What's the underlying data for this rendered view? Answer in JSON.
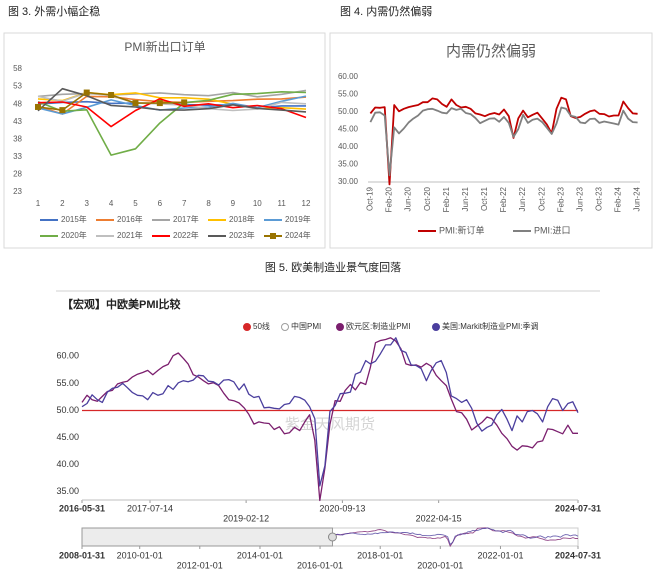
{
  "chart_data": [
    {
      "type": "line",
      "caption": "图 3.  外需小幅企稳",
      "title": "PMI新出口订单",
      "categories": [
        "1",
        "2",
        "3",
        "4",
        "5",
        "6",
        "7",
        "8",
        "9",
        "10",
        "11",
        "12"
      ],
      "ylim": [
        23,
        58
      ],
      "yticks": [
        23,
        28,
        33,
        38,
        43,
        48,
        53,
        58
      ],
      "grid": false,
      "series": [
        {
          "name": "2015年",
          "color": "#4472c4",
          "values": [
            48.0,
            48.5,
            48.7,
            48.2,
            48.3,
            48.2,
            47.9,
            47.7,
            47.9,
            46.9,
            47.5,
            47.5
          ]
        },
        {
          "name": "2016年",
          "color": "#ed7d31",
          "values": [
            47.4,
            45.2,
            50.2,
            50.1,
            49.3,
            48.7,
            48.5,
            48.8,
            49.0,
            49.4,
            49.5,
            50.0
          ]
        },
        {
          "name": "2017年",
          "color": "#a5a5a5",
          "values": [
            50.2,
            50.8,
            51.0,
            50.6,
            50.9,
            51.2,
            50.7,
            50.4,
            51.3,
            50.1,
            50.8,
            51.9
          ]
        },
        {
          "name": "2018年",
          "color": "#ffc000",
          "values": [
            49.5,
            49.0,
            51.3,
            50.7,
            51.2,
            49.8,
            49.8,
            49.4,
            48.0,
            46.9,
            47.0,
            46.6
          ]
        },
        {
          "name": "2019年",
          "color": "#5b9bd5",
          "values": [
            46.9,
            45.2,
            47.1,
            49.2,
            47.6,
            46.3,
            46.9,
            47.2,
            48.2,
            47.0,
            48.8,
            50.3
          ]
        },
        {
          "name": "2020年",
          "color": "#70ad47",
          "values": [
            48.7,
            46.0,
            46.4,
            33.5,
            35.3,
            42.6,
            48.4,
            49.1,
            50.8,
            51.0,
            51.5,
            51.3
          ]
        },
        {
          "name": "2021年",
          "color": "#bfbfbf",
          "values": [
            50.2,
            48.8,
            51.2,
            50.4,
            48.3,
            48.1,
            47.7,
            46.7,
            46.2,
            46.6,
            48.5,
            48.1
          ]
        },
        {
          "name": "2022年",
          "color": "#ff0000",
          "values": [
            48.4,
            48.6,
            47.2,
            41.6,
            46.2,
            49.5,
            47.4,
            48.1,
            47.0,
            47.6,
            46.7,
            44.2
          ]
        },
        {
          "name": "2023年",
          "color": "#595959",
          "values": [
            46.1,
            52.4,
            50.4,
            47.6,
            47.2,
            46.4,
            46.3,
            46.7,
            47.8,
            46.8,
            46.3,
            45.8
          ]
        },
        {
          "name": "2024年",
          "color": "#997300",
          "marker": "square",
          "values": [
            47.2,
            46.3,
            51.3,
            50.6,
            48.3,
            48.3,
            48.5,
            null,
            null,
            null,
            null,
            null
          ]
        }
      ]
    },
    {
      "type": "line",
      "caption": "图 4.  内需仍然偏弱",
      "title": "内需仍然偏弱",
      "categories": [
        "Oct-19",
        null,
        null,
        null,
        "Feb-20",
        null,
        null,
        null,
        "Jun-20",
        null,
        null,
        null,
        "Oct-20",
        null,
        null,
        null,
        "Feb-21",
        null,
        null,
        null,
        "Jun-21",
        null,
        null,
        null,
        "Oct-21",
        null,
        null,
        null,
        "Feb-22",
        null,
        null,
        null,
        "Jun-22",
        null,
        null,
        null,
        "Oct-22",
        null,
        null,
        null,
        "Feb-23",
        null,
        null,
        null,
        "Jun-23",
        null,
        null,
        null,
        "Oct-23",
        null,
        null,
        null,
        "Feb-24",
        null,
        null,
        null,
        "Jun-24"
      ],
      "ylim": [
        30,
        60
      ],
      "yticks": [
        {
          "value": 30,
          "label": "30.00"
        },
        {
          "value": 35,
          "label": "35.00"
        },
        {
          "value": 40,
          "label": "40.00"
        },
        {
          "value": 45,
          "label": "45.00"
        },
        {
          "value": 50,
          "label": "50.00"
        },
        {
          "value": 55,
          "label": "55.00"
        },
        {
          "value": 60,
          "label": "60.00"
        }
      ],
      "grid": false,
      "series": [
        {
          "name": "PMI:新订单",
          "color": "#c00000",
          "values": [
            49.6,
            51.3,
            51.2,
            51.4,
            29.3,
            52.0,
            50.2,
            50.9,
            51.4,
            51.7,
            52.0,
            52.8,
            52.8,
            53.9,
            53.6,
            52.3,
            51.5,
            53.6,
            52.0,
            51.3,
            51.5,
            50.9,
            49.6,
            49.3,
            48.8,
            49.4,
            49.7,
            49.3,
            50.7,
            48.8,
            42.6,
            48.2,
            50.4,
            48.5,
            49.2,
            49.8,
            48.1,
            46.4,
            43.9,
            50.9,
            54.1,
            53.6,
            48.8,
            48.3,
            48.6,
            49.5,
            50.2,
            50.5,
            49.5,
            49.4,
            48.7,
            49.0,
            49.0,
            53.0,
            51.1,
            49.6,
            49.5
          ]
        },
        {
          "name": "PMI:进口",
          "color": "#808080",
          "values": [
            47.1,
            49.8,
            49.9,
            49.0,
            31.9,
            45.6,
            43.9,
            45.3,
            47.0,
            48.1,
            49.0,
            50.4,
            50.8,
            50.9,
            50.4,
            49.8,
            49.6,
            51.1,
            50.6,
            50.9,
            49.7,
            49.4,
            48.3,
            46.8,
            47.5,
            48.1,
            48.2,
            47.2,
            48.6,
            46.9,
            42.9,
            45.1,
            49.2,
            46.9,
            47.8,
            48.1,
            47.1,
            45.5,
            43.7,
            46.7,
            51.3,
            50.9,
            48.9,
            48.6,
            47.0,
            46.8,
            48.0,
            48.1,
            46.9,
            47.3,
            47.0,
            46.7,
            46.4,
            50.4,
            48.1,
            47.1,
            47.0
          ]
        }
      ]
    },
    {
      "type": "line",
      "caption": "图 5.  欧美制造业景气度回落",
      "title": "【宏观】中欧美PMI比较",
      "watermark": "紫金天风期货",
      "x": [
        "2016-05-31",
        "2016-06-30",
        "2016-07-31",
        "2016-08-31",
        "2016-09-30",
        "2016-10-31",
        "2016-11-30",
        "2016-12-31",
        "2017-01-31",
        "2017-02-28",
        "2017-03-31",
        "2017-04-30",
        "2017-05-31",
        "2017-06-30",
        "2017-07-31",
        "2017-08-31",
        "2017-09-30",
        "2017-10-31",
        "2017-11-30",
        "2017-12-31",
        "2018-01-31",
        "2018-02-28",
        "2018-03-31",
        "2018-04-30",
        "2018-05-31",
        "2018-06-30",
        "2018-07-31",
        "2018-08-31",
        "2018-09-30",
        "2018-10-31",
        "2018-11-30",
        "2018-12-31",
        "2019-01-31",
        "2019-02-28",
        "2019-03-31",
        "2019-04-30",
        "2019-05-31",
        "2019-06-30",
        "2019-07-31",
        "2019-08-31",
        "2019-09-30",
        "2019-10-31",
        "2019-11-30",
        "2019-12-31",
        "2020-01-31",
        "2020-02-29",
        "2020-03-31",
        "2020-04-30",
        "2020-05-31",
        "2020-06-30",
        "2020-07-31",
        "2020-08-31",
        "2020-09-30",
        "2020-10-31",
        "2020-11-30",
        "2020-12-31",
        "2021-01-31",
        "2021-02-28",
        "2021-03-31",
        "2021-04-30",
        "2021-05-31",
        "2021-06-30",
        "2021-07-31",
        "2021-08-31",
        "2021-09-30",
        "2021-10-31",
        "2021-11-30",
        "2021-12-31",
        "2022-01-31",
        "2022-02-28",
        "2022-03-31",
        "2022-04-30",
        "2022-05-31",
        "2022-06-30",
        "2022-07-31",
        "2022-08-31",
        "2022-09-30",
        "2022-10-31",
        "2022-11-30",
        "2022-12-31",
        "2023-01-31",
        "2023-02-28",
        "2023-03-31",
        "2023-04-30",
        "2023-05-31",
        "2023-06-30",
        "2023-07-31",
        "2023-08-31",
        "2023-09-30",
        "2023-10-31",
        "2023-11-30",
        "2023-12-31",
        "2024-01-31",
        "2024-02-29",
        "2024-03-31",
        "2024-04-30",
        "2024-05-31",
        "2024-06-30",
        "2024-07-31"
      ],
      "xlim": [
        "2016-05-31",
        "2024-07-31"
      ],
      "xticks": [
        "2016-05-31",
        "2017-07-14",
        "2019-02-12",
        "2020-09-13",
        "2022-04-15",
        "2024-07-31"
      ],
      "ylim": [
        33.5,
        63
      ],
      "yticks": [
        {
          "value": 35,
          "label": "35.00"
        },
        {
          "value": 40,
          "label": "40.00"
        },
        {
          "value": 45,
          "label": "45.00"
        },
        {
          "value": 50,
          "label": "50.00"
        },
        {
          "value": 55,
          "label": "55.00"
        },
        {
          "value": 60,
          "label": "60.00"
        }
      ],
      "grid": false,
      "series": [
        {
          "name": "50线",
          "color": "#d62728",
          "value": 50
        },
        {
          "name": "中国PMI",
          "color": "#9e9e9e",
          "hollow": true
        },
        {
          "name": "欧元区:制造业PMI",
          "color": "#7b1f6e",
          "values": [
            51.5,
            52.8,
            52.0,
            51.7,
            52.6,
            53.5,
            53.7,
            54.9,
            55.2,
            55.4,
            56.2,
            56.7,
            57.0,
            57.4,
            56.6,
            57.4,
            58.1,
            58.5,
            60.1,
            60.6,
            59.6,
            58.6,
            56.6,
            56.2,
            55.5,
            54.9,
            55.1,
            54.6,
            53.2,
            52.0,
            51.8,
            51.4,
            50.5,
            49.3,
            47.5,
            47.9,
            47.7,
            47.6,
            46.5,
            47.0,
            45.7,
            45.9,
            46.9,
            46.3,
            47.9,
            49.2,
            44.5,
            33.4,
            39.4,
            47.4,
            51.8,
            51.7,
            53.7,
            54.8,
            53.8,
            55.2,
            54.8,
            57.9,
            62.5,
            62.9,
            63.1,
            63.4,
            62.8,
            61.4,
            58.6,
            58.3,
            58.4,
            58.0,
            58.7,
            58.2,
            56.5,
            55.5,
            54.6,
            52.1,
            49.8,
            49.6,
            48.4,
            46.4,
            47.1,
            47.8,
            48.8,
            48.5,
            47.3,
            45.8,
            44.8,
            43.4,
            42.7,
            43.5,
            43.4,
            43.1,
            44.2,
            44.4,
            46.6,
            46.5,
            46.1,
            45.7,
            47.3,
            45.8,
            45.8
          ]
        },
        {
          "name": "美国:Markit制造业PMI:季调",
          "color": "#4b3f9e",
          "values": [
            50.7,
            51.3,
            52.9,
            52.0,
            51.5,
            53.4,
            54.1,
            54.3,
            55.0,
            54.2,
            53.3,
            52.8,
            52.7,
            52.0,
            53.3,
            52.8,
            53.1,
            54.6,
            53.9,
            55.1,
            55.5,
            55.3,
            55.6,
            56.5,
            56.4,
            55.4,
            55.3,
            54.7,
            55.6,
            55.7,
            55.3,
            53.8,
            54.9,
            53.0,
            52.4,
            52.6,
            50.5,
            50.6,
            50.4,
            50.3,
            51.1,
            51.3,
            52.6,
            52.4,
            51.9,
            50.7,
            48.5,
            36.1,
            39.8,
            49.8,
            50.9,
            53.1,
            53.2,
            53.4,
            56.7,
            57.1,
            59.2,
            58.6,
            59.1,
            60.5,
            62.1,
            62.1,
            63.4,
            61.1,
            60.7,
            58.4,
            58.3,
            57.7,
            55.5,
            57.3,
            58.8,
            59.2,
            57.0,
            52.7,
            52.2,
            51.5,
            52.0,
            50.4,
            47.7,
            46.2,
            46.9,
            47.3,
            49.2,
            50.2,
            48.4,
            46.3,
            49.0,
            47.9,
            49.8,
            50.0,
            49.4,
            47.9,
            50.7,
            52.2,
            51.9,
            50.0,
            51.3,
            51.6,
            49.6
          ]
        }
      ],
      "navigator": {
        "xlim": [
          "2008-01-31",
          "2024-07-31"
        ],
        "xticks": [
          "2008-01-31",
          "2010-01-01",
          "2012-01-01",
          "2014-01-01",
          "2016-01-01",
          "2018-01-01",
          "2020-01-01",
          "2022-01-01",
          "2024-07-31"
        ]
      }
    }
  ]
}
